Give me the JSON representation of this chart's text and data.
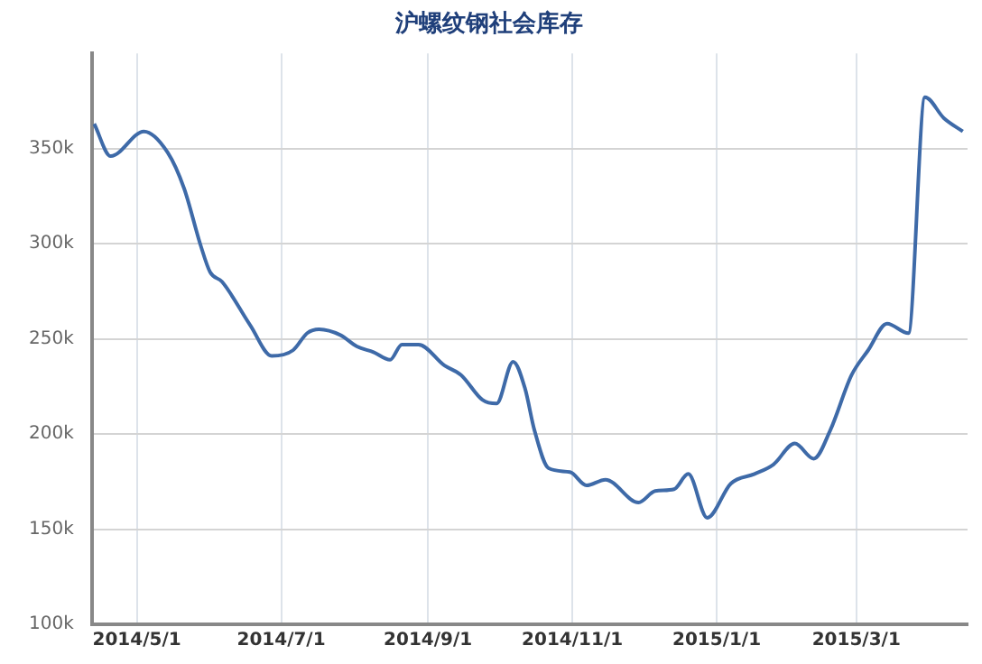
{
  "chart_data": {
    "type": "line",
    "title": "沪螺纹钢社会库存",
    "x": [
      "2014-04-13",
      "2014-04-20",
      "2014-05-04",
      "2014-05-14",
      "2014-05-21",
      "2014-05-28",
      "2014-06-01",
      "2014-06-06",
      "2014-06-18",
      "2014-06-27",
      "2014-07-06",
      "2014-07-12",
      "2014-07-17",
      "2014-07-26",
      "2014-08-02",
      "2014-08-09",
      "2014-08-16",
      "2014-08-21",
      "2014-08-28",
      "2014-09-08",
      "2014-09-15",
      "2014-09-24",
      "2014-09-30",
      "2014-10-07",
      "2014-10-12",
      "2014-10-16",
      "2014-10-22",
      "2014-10-31",
      "2014-11-07",
      "2014-11-15",
      "2014-11-29",
      "2014-12-06",
      "2014-12-14",
      "2014-12-20",
      "2014-12-28",
      "2015-01-07",
      "2015-01-17",
      "2015-01-25",
      "2015-02-03",
      "2015-02-11",
      "2015-02-18",
      "2015-02-27",
      "2015-03-06",
      "2015-03-14",
      "2015-03-23",
      "2015-03-30",
      "2015-04-07",
      "2015-04-15"
    ],
    "series": [
      {
        "color": "#3e6aa8",
        "values": [
          363000,
          346000,
          359000,
          348000,
          329000,
          299000,
          285000,
          280000,
          257000,
          241000,
          244000,
          253000,
          255000,
          252000,
          246000,
          243000,
          239000,
          247000,
          247000,
          236000,
          231000,
          218000,
          216000,
          238000,
          224000,
          202000,
          182000,
          180000,
          173000,
          176000,
          164000,
          170000,
          171000,
          179000,
          156000,
          174000,
          179000,
          184000,
          195000,
          187000,
          202000,
          231000,
          244000,
          258000,
          253000,
          377000,
          366000,
          359000
        ]
      }
    ],
    "xlim": [
      "2014-04-12",
      "2015-04-17"
    ],
    "xticks": [
      {
        "value": "2014-05-01",
        "label": "2014/5/1"
      },
      {
        "value": "2014-07-01",
        "label": "2014/7/1"
      },
      {
        "value": "2014-09-01",
        "label": "2014/9/1"
      },
      {
        "value": "2014-11-01",
        "label": "2014/11/1"
      },
      {
        "value": "2015-01-01",
        "label": "2015/1/1"
      },
      {
        "value": "2015-03-01",
        "label": "2015/3/1"
      }
    ],
    "ylim": [
      100000,
      400000
    ],
    "yticks": [
      {
        "value": 100000,
        "label": "100k"
      },
      {
        "value": 150000,
        "label": "150k"
      },
      {
        "value": 200000,
        "label": "200k"
      },
      {
        "value": 250000,
        "label": "250k"
      },
      {
        "value": 300000,
        "label": "300k"
      },
      {
        "value": 350000,
        "label": "350k"
      }
    ],
    "grid": true,
    "legend": false,
    "marker": "none",
    "line_style": "solid"
  }
}
